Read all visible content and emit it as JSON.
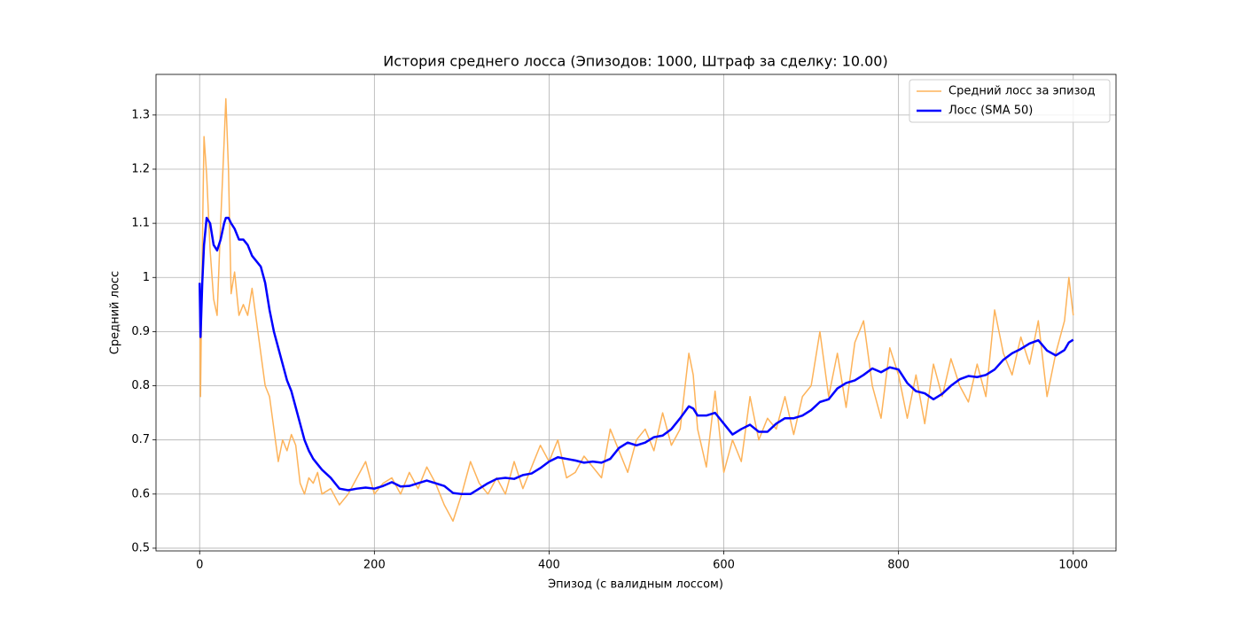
{
  "chart_data": {
    "type": "line",
    "title": "История среднего лосса (Эпизодов: 1000, Штраф за сделку: 10.00)",
    "x_label": "Эпизод (с валидным лоссом)",
    "y_label": "Средний лосс",
    "x": [
      0,
      1,
      3,
      5,
      8,
      12,
      16,
      20,
      24,
      28,
      30,
      33,
      36,
      40,
      45,
      50,
      55,
      60,
      65,
      70,
      75,
      80,
      85,
      90,
      95,
      100,
      105,
      110,
      115,
      120,
      125,
      130,
      135,
      140,
      150,
      160,
      170,
      180,
      190,
      200,
      210,
      220,
      230,
      240,
      250,
      260,
      270,
      280,
      290,
      300,
      310,
      320,
      330,
      340,
      350,
      360,
      370,
      380,
      390,
      400,
      410,
      420,
      430,
      440,
      450,
      460,
      470,
      480,
      490,
      500,
      510,
      520,
      530,
      540,
      550,
      560,
      565,
      570,
      580,
      590,
      600,
      610,
      620,
      630,
      640,
      650,
      660,
      670,
      680,
      690,
      700,
      710,
      720,
      730,
      740,
      750,
      760,
      770,
      780,
      790,
      800,
      810,
      820,
      830,
      840,
      850,
      860,
      870,
      880,
      890,
      900,
      910,
      920,
      930,
      940,
      950,
      960,
      970,
      980,
      990,
      995,
      1000
    ],
    "series": [
      {
        "name": "Средний лосс за эпизод",
        "color": "#fdb35a",
        "line_width": 1.5,
        "values": [
          0.99,
          0.78,
          1.05,
          1.26,
          1.19,
          1.05,
          0.96,
          0.93,
          1.1,
          1.25,
          1.33,
          1.2,
          0.97,
          1.01,
          0.93,
          0.95,
          0.93,
          0.98,
          0.92,
          0.86,
          0.8,
          0.78,
          0.72,
          0.66,
          0.7,
          0.68,
          0.71,
          0.69,
          0.62,
          0.6,
          0.63,
          0.62,
          0.64,
          0.6,
          0.61,
          0.58,
          0.6,
          0.63,
          0.66,
          0.6,
          0.62,
          0.63,
          0.6,
          0.64,
          0.61,
          0.65,
          0.62,
          0.58,
          0.55,
          0.6,
          0.66,
          0.62,
          0.6,
          0.63,
          0.6,
          0.66,
          0.61,
          0.65,
          0.69,
          0.66,
          0.7,
          0.63,
          0.64,
          0.67,
          0.65,
          0.63,
          0.72,
          0.68,
          0.64,
          0.7,
          0.72,
          0.68,
          0.75,
          0.69,
          0.72,
          0.86,
          0.82,
          0.72,
          0.65,
          0.79,
          0.64,
          0.7,
          0.66,
          0.78,
          0.7,
          0.74,
          0.72,
          0.78,
          0.71,
          0.78,
          0.8,
          0.9,
          0.78,
          0.86,
          0.76,
          0.88,
          0.92,
          0.8,
          0.74,
          0.87,
          0.82,
          0.74,
          0.82,
          0.73,
          0.84,
          0.78,
          0.85,
          0.8,
          0.77,
          0.84,
          0.78,
          0.94,
          0.86,
          0.82,
          0.89,
          0.84,
          0.92,
          0.78,
          0.86,
          0.92,
          1.0,
          0.93
        ]
      },
      {
        "name": "Лосс (SMA 50)",
        "color": "#0000ff",
        "line_width": 2.5,
        "values": [
          0.99,
          0.89,
          0.99,
          1.06,
          1.11,
          1.1,
          1.06,
          1.05,
          1.07,
          1.1,
          1.11,
          1.11,
          1.1,
          1.09,
          1.07,
          1.07,
          1.06,
          1.04,
          1.03,
          1.02,
          0.99,
          0.94,
          0.9,
          0.87,
          0.84,
          0.81,
          0.79,
          0.76,
          0.73,
          0.7,
          0.68,
          0.665,
          0.655,
          0.645,
          0.63,
          0.61,
          0.607,
          0.61,
          0.612,
          0.61,
          0.615,
          0.622,
          0.614,
          0.615,
          0.62,
          0.625,
          0.62,
          0.615,
          0.602,
          0.6,
          0.6,
          0.61,
          0.62,
          0.628,
          0.63,
          0.628,
          0.635,
          0.638,
          0.648,
          0.66,
          0.668,
          0.665,
          0.662,
          0.658,
          0.66,
          0.658,
          0.665,
          0.685,
          0.695,
          0.69,
          0.695,
          0.705,
          0.708,
          0.72,
          0.74,
          0.762,
          0.758,
          0.745,
          0.745,
          0.75,
          0.73,
          0.71,
          0.72,
          0.728,
          0.715,
          0.715,
          0.73,
          0.74,
          0.74,
          0.745,
          0.755,
          0.77,
          0.775,
          0.795,
          0.805,
          0.81,
          0.82,
          0.832,
          0.825,
          0.834,
          0.83,
          0.805,
          0.79,
          0.786,
          0.775,
          0.785,
          0.8,
          0.812,
          0.818,
          0.816,
          0.82,
          0.83,
          0.848,
          0.86,
          0.868,
          0.878,
          0.884,
          0.865,
          0.856,
          0.866,
          0.88,
          0.885
        ]
      }
    ],
    "xlim": [
      -49.95,
      1048.95
    ],
    "ylim": [
      0.495,
      1.375
    ],
    "xticks": [
      0,
      200,
      400,
      600,
      800,
      1000
    ],
    "yticks": [
      0.5,
      0.6,
      0.7,
      0.8,
      0.9,
      1.0,
      1.1,
      1.2,
      1.3
    ],
    "grid": true,
    "legend": "upper right"
  }
}
